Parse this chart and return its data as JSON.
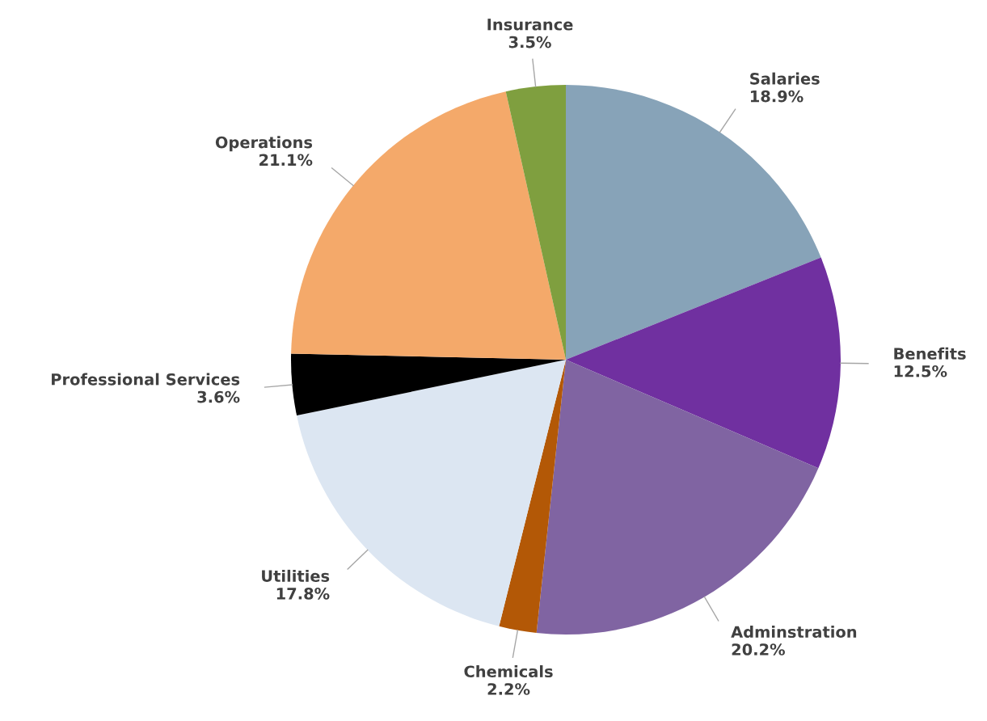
{
  "chart_data": {
    "type": "pie",
    "categories": [
      "Salaries",
      "Benefits",
      "Adminstration",
      "Chemicals",
      "Utilities",
      "Professional Services",
      "Operations",
      "Insurance"
    ],
    "values": [
      18.9,
      12.5,
      20.2,
      2.2,
      17.8,
      3.6,
      21.1,
      3.5
    ],
    "value_labels": [
      "18.9%",
      "12.5%",
      "20.2%",
      "2.2%",
      "17.8%",
      "3.6%",
      "21.1%",
      "3.5%"
    ],
    "colors": [
      "#87a3b8",
      "#7030a0",
      "#8064a2",
      "#b35806",
      "#dce6f2",
      "#000000",
      "#f4a96a",
      "#7f9f3f"
    ],
    "legend": false
  }
}
